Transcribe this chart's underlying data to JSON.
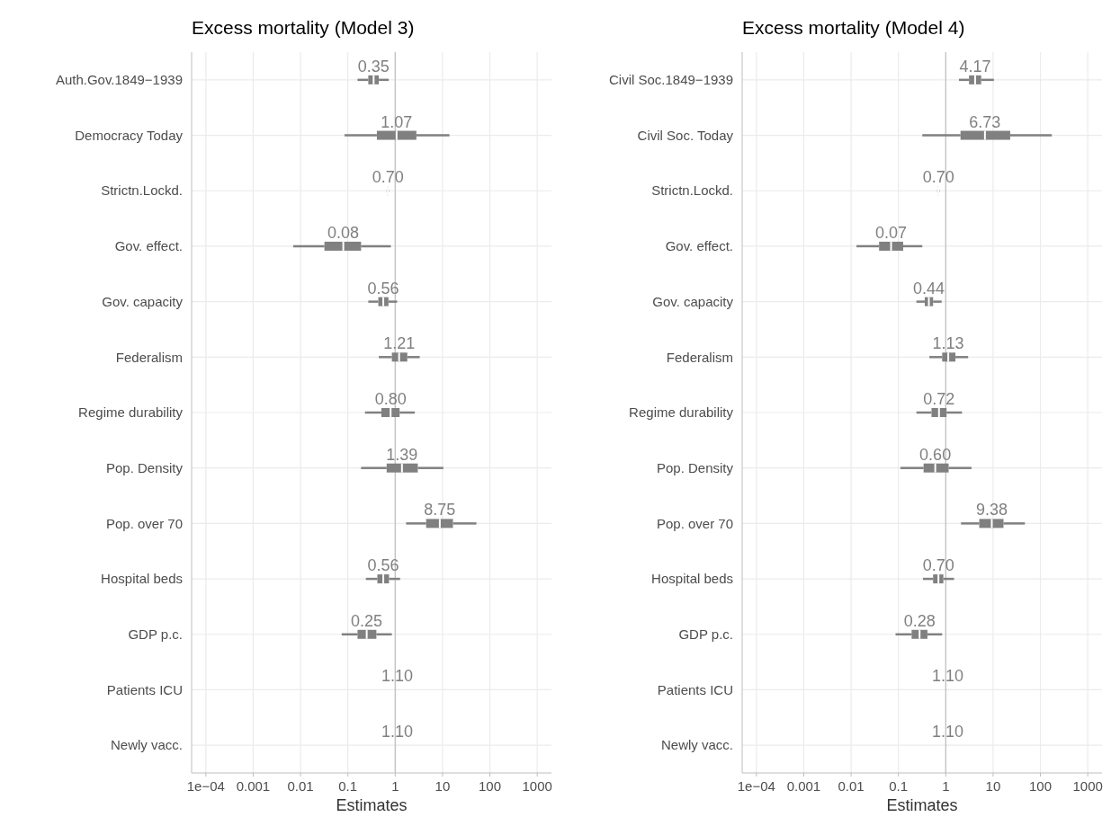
{
  "chart_data": [
    {
      "type": "box",
      "orientation": "horizontal",
      "title": "Excess mortality (Model 3)",
      "xlabel": "Estimates",
      "log": "x",
      "grid": true,
      "categories": [
        "Auth.Gov.1849−1939",
        "Democracy Today",
        "Strictn.Lockd.",
        "Gov. effect.",
        "Gov. capacity",
        "Federalism",
        "Regime durability",
        "Pop. Density",
        "Pop. over 70",
        "Hospital beds",
        "GDP p.c.",
        "Patients ICU",
        "Newly vacc."
      ],
      "xlim": [
        5e-05,
        2000
      ],
      "xticks": [
        {
          "value": 0.0001,
          "label": "1e−04"
        },
        0.001,
        0.01,
        0.1,
        1,
        10,
        100,
        1000
      ],
      "ref_lines": [
        {
          "axis": "x",
          "value": 1,
          "color": "#bebebe"
        }
      ],
      "series": [
        {
          "color": "#808080",
          "value_labels": [
            "0.35",
            "1.07",
            "0.70",
            "0.08",
            "0.56",
            "1.21",
            "0.80",
            "1.39",
            "8.75",
            "0.56",
            "0.25",
            "1.10",
            "1.10"
          ],
          "boxes": [
            {
              "low": 0.16,
              "q1": 0.27,
              "median": 0.35,
              "q3": 0.45,
              "high": 0.73
            },
            {
              "low": 0.085,
              "q1": 0.41,
              "median": 1.07,
              "q3": 2.8,
              "high": 14
            },
            {
              "low": 0.66,
              "q1": 0.68,
              "median": 0.7,
              "q3": 0.72,
              "high": 0.74
            },
            {
              "low": 0.007,
              "q1": 0.032,
              "median": 0.08,
              "q3": 0.19,
              "high": 0.81
            },
            {
              "low": 0.27,
              "q1": 0.44,
              "median": 0.56,
              "q3": 0.72,
              "high": 1.1
            },
            {
              "low": 0.45,
              "q1": 0.85,
              "median": 1.21,
              "q3": 1.8,
              "high": 3.3
            },
            {
              "low": 0.23,
              "q1": 0.51,
              "median": 0.8,
              "q3": 1.24,
              "high": 2.6
            },
            {
              "low": 0.19,
              "q1": 0.66,
              "median": 1.39,
              "q3": 3.0,
              "high": 10.4
            },
            {
              "low": 1.7,
              "q1": 4.5,
              "median": 8.75,
              "q3": 16.6,
              "high": 52
            },
            {
              "low": 0.24,
              "q1": 0.42,
              "median": 0.56,
              "q3": 0.74,
              "high": 1.27
            },
            {
              "low": 0.074,
              "q1": 0.16,
              "median": 0.25,
              "q3": 0.4,
              "high": 0.85
            },
            {
              "low": 1.06,
              "q1": 1.08,
              "median": 1.1,
              "q3": 1.12,
              "high": 1.14
            },
            {
              "low": 1.06,
              "q1": 1.08,
              "median": 1.1,
              "q3": 1.12,
              "high": 1.14
            }
          ]
        }
      ]
    },
    {
      "type": "box",
      "orientation": "horizontal",
      "title": "Excess mortality (Model 4)",
      "xlabel": "Estimates",
      "log": "x",
      "grid": true,
      "categories": [
        "Civil Soc.1849−1939",
        "Civil Soc. Today",
        "Strictn.Lockd.",
        "Gov. effect.",
        "Gov. capacity",
        "Federalism",
        "Regime durability",
        "Pop. Density",
        "Pop. over 70",
        "Hospital beds",
        "GDP p.c.",
        "Patients ICU",
        "Newly vacc."
      ],
      "xlim": [
        5e-05,
        2000
      ],
      "xticks": [
        {
          "value": 0.0001,
          "label": "1e−04"
        },
        0.001,
        0.01,
        0.1,
        1,
        10,
        100,
        1000
      ],
      "ref_lines": [
        {
          "axis": "x",
          "value": 1,
          "color": "#bebebe"
        }
      ],
      "series": [
        {
          "color": "#808080",
          "value_labels": [
            "4.17",
            "6.73",
            "0.70",
            "0.07",
            "0.44",
            "1.13",
            "0.72",
            "0.60",
            "9.38",
            "0.70",
            "0.28",
            "1.10",
            "1.10"
          ],
          "boxes": [
            {
              "low": 1.9,
              "q1": 3.1,
              "median": 4.17,
              "q3": 5.6,
              "high": 10.4
            },
            {
              "low": 0.32,
              "q1": 2.05,
              "median": 6.73,
              "q3": 23,
              "high": 174
            },
            {
              "low": 0.66,
              "q1": 0.68,
              "median": 0.7,
              "q3": 0.72,
              "high": 0.74
            },
            {
              "low": 0.013,
              "q1": 0.039,
              "median": 0.07,
              "q3": 0.126,
              "high": 0.32
            },
            {
              "low": 0.24,
              "q1": 0.36,
              "median": 0.44,
              "q3": 0.54,
              "high": 0.82
            },
            {
              "low": 0.45,
              "q1": 0.84,
              "median": 1.13,
              "q3": 1.6,
              "high": 2.97
            },
            {
              "low": 0.24,
              "q1": 0.5,
              "median": 0.72,
              "q3": 1.04,
              "high": 2.2
            },
            {
              "low": 0.11,
              "q1": 0.34,
              "median": 0.6,
              "q3": 1.15,
              "high": 3.5
            },
            {
              "low": 2.1,
              "q1": 5.1,
              "median": 9.38,
              "q3": 16.6,
              "high": 47
            },
            {
              "low": 0.33,
              "q1": 0.54,
              "median": 0.7,
              "q3": 0.89,
              "high": 1.5
            },
            {
              "low": 0.087,
              "q1": 0.19,
              "median": 0.28,
              "q3": 0.41,
              "high": 0.84
            },
            {
              "low": 1.06,
              "q1": 1.08,
              "median": 1.1,
              "q3": 1.12,
              "high": 1.14
            },
            {
              "low": 1.06,
              "q1": 1.08,
              "median": 1.1,
              "q3": 1.12,
              "high": 1.14
            }
          ]
        }
      ]
    }
  ]
}
